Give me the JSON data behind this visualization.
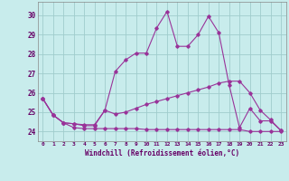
{
  "xlabel": "Windchill (Refroidissement éolien,°C)",
  "background_color": "#c8ecec",
  "line_color": "#993399",
  "grid_color": "#a0cccc",
  "xlim": [
    -0.5,
    23.5
  ],
  "ylim": [
    23.5,
    30.7
  ],
  "yticks": [
    24,
    25,
    26,
    27,
    28,
    29,
    30
  ],
  "xticks": [
    0,
    1,
    2,
    3,
    4,
    5,
    6,
    7,
    8,
    9,
    10,
    11,
    12,
    13,
    14,
    15,
    16,
    17,
    18,
    19,
    20,
    21,
    22,
    23
  ],
  "series": {
    "line1": [
      [
        0,
        25.7
      ],
      [
        1,
        24.85
      ],
      [
        2,
        24.45
      ],
      [
        3,
        24.2
      ],
      [
        4,
        24.15
      ],
      [
        5,
        24.15
      ],
      [
        6,
        24.15
      ],
      [
        7,
        24.15
      ],
      [
        8,
        24.15
      ],
      [
        9,
        24.15
      ],
      [
        10,
        24.1
      ],
      [
        11,
        24.1
      ],
      [
        12,
        24.1
      ],
      [
        13,
        24.1
      ],
      [
        14,
        24.1
      ],
      [
        15,
        24.1
      ],
      [
        16,
        24.1
      ],
      [
        17,
        24.1
      ],
      [
        18,
        24.1
      ],
      [
        19,
        24.1
      ],
      [
        20,
        24.0
      ],
      [
        21,
        24.0
      ],
      [
        22,
        24.0
      ],
      [
        23,
        24.0
      ]
    ],
    "line2": [
      [
        0,
        25.7
      ],
      [
        1,
        24.85
      ],
      [
        2,
        24.45
      ],
      [
        3,
        24.4
      ],
      [
        4,
        24.3
      ],
      [
        5,
        24.3
      ],
      [
        6,
        25.1
      ],
      [
        7,
        24.9
      ],
      [
        8,
        25.0
      ],
      [
        9,
        25.2
      ],
      [
        10,
        25.4
      ],
      [
        11,
        25.55
      ],
      [
        12,
        25.7
      ],
      [
        13,
        25.85
      ],
      [
        14,
        26.0
      ],
      [
        15,
        26.15
      ],
      [
        16,
        26.3
      ],
      [
        17,
        26.5
      ],
      [
        18,
        26.6
      ],
      [
        19,
        26.6
      ],
      [
        20,
        26.0
      ],
      [
        21,
        25.1
      ],
      [
        22,
        24.6
      ],
      [
        23,
        24.05
      ]
    ],
    "line3": [
      [
        0,
        25.7
      ],
      [
        1,
        24.85
      ],
      [
        2,
        24.45
      ],
      [
        3,
        24.4
      ],
      [
        4,
        24.35
      ],
      [
        5,
        24.35
      ],
      [
        6,
        25.1
      ],
      [
        7,
        27.1
      ],
      [
        8,
        27.7
      ],
      [
        9,
        28.05
      ],
      [
        10,
        28.05
      ],
      [
        11,
        29.35
      ],
      [
        12,
        30.2
      ],
      [
        13,
        28.4
      ],
      [
        14,
        28.4
      ],
      [
        15,
        29.0
      ],
      [
        16,
        29.95
      ],
      [
        17,
        29.1
      ],
      [
        18,
        26.4
      ],
      [
        19,
        24.2
      ],
      [
        20,
        25.2
      ],
      [
        21,
        24.55
      ],
      [
        22,
        24.55
      ],
      [
        23,
        24.05
      ]
    ]
  }
}
